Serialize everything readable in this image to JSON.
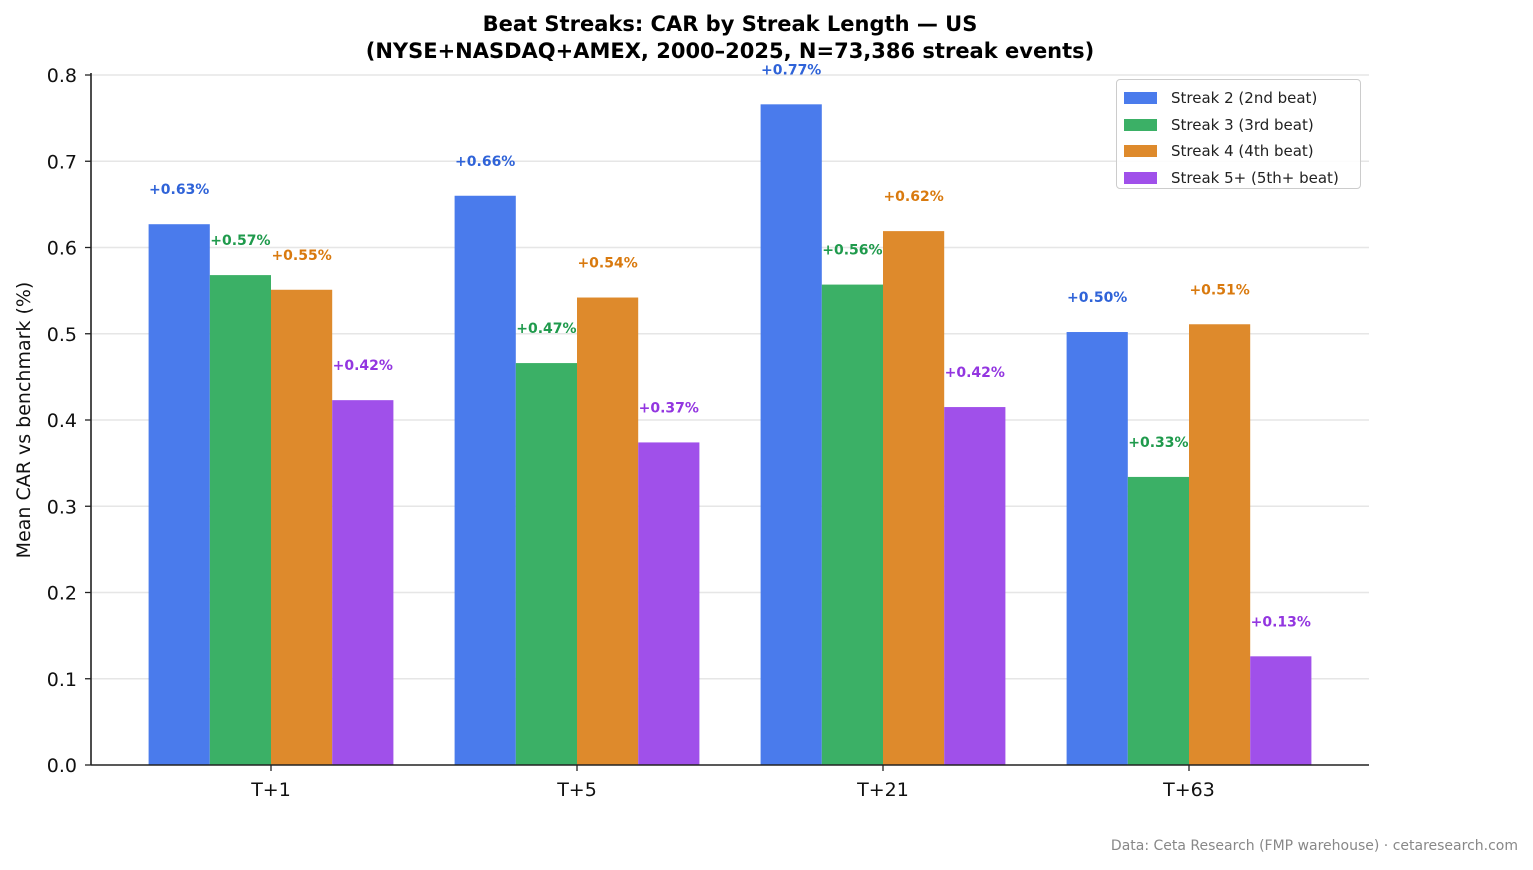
{
  "chart_data": {
    "type": "bar",
    "title": "Beat Streaks: CAR by Streak Length — US",
    "subtitle": "(NYSE+NASDAQ+AMEX, 2000–2025, N=73,386 streak events)",
    "xlabel": "",
    "ylabel": "Mean CAR vs benchmark (%)",
    "categories": [
      "T+1",
      "T+5",
      "T+21",
      "T+63"
    ],
    "ylim": [
      0.0,
      0.8
    ],
    "yticks": [
      0.0,
      0.1,
      0.2,
      0.3,
      0.4,
      0.5,
      0.6,
      0.7,
      0.8
    ],
    "grid": "horizontal",
    "legend_position": "upper right",
    "series": [
      {
        "name": "Streak 2 (2nd beat)",
        "color": "#4a7bec",
        "label_color": "#2f63d8",
        "values": [
          0.627,
          0.66,
          0.766,
          0.502
        ],
        "labels": [
          "+0.63%",
          "+0.66%",
          "+0.77%",
          "+0.50%"
        ]
      },
      {
        "name": "Streak 3 (3rd beat)",
        "color": "#3bb066",
        "label_color": "#1f9a4c",
        "values": [
          0.568,
          0.466,
          0.557,
          0.334
        ],
        "labels": [
          "+0.57%",
          "+0.47%",
          "+0.56%",
          "+0.33%"
        ]
      },
      {
        "name": "Streak 4 (4th beat)",
        "color": "#de8a2c",
        "label_color": "#d97a0f",
        "values": [
          0.551,
          0.542,
          0.619,
          0.511
        ],
        "labels": [
          "+0.55%",
          "+0.54%",
          "+0.62%",
          "+0.51%"
        ]
      },
      {
        "name": "Streak 5+ (5th+ beat)",
        "color": "#a050ea",
        "label_color": "#9336e0",
        "values": [
          0.423,
          0.374,
          0.415,
          0.126
        ],
        "labels": [
          "+0.42%",
          "+0.37%",
          "+0.42%",
          "+0.13%"
        ]
      }
    ]
  },
  "footer": {
    "source": "Data: Ceta Research (FMP warehouse) · cetaresearch.com"
  }
}
